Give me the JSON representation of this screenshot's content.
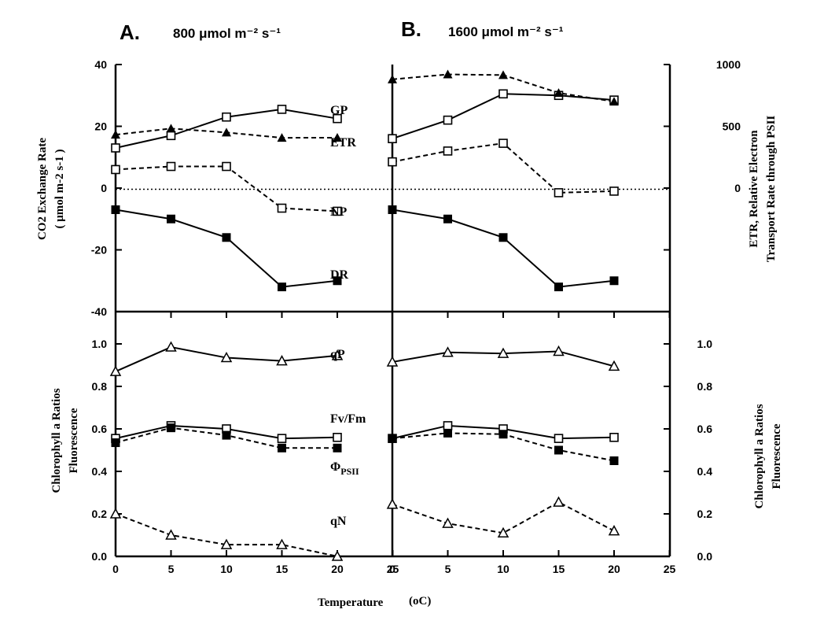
{
  "chart_data": [
    {
      "panel": "A",
      "title_letter": "A.",
      "title_light": "800 μmol m⁻² s⁻¹",
      "type": "line",
      "ylabel": "CO2 Exchange Rate (μmol m-2 s-1)",
      "ylim": [
        -40,
        40
      ],
      "yticks": [
        "40",
        "20",
        "0",
        "-20",
        "-40"
      ],
      "y2label": "ETR, Relative Electron Transport Rate through PSII",
      "y2lim": [
        -1000,
        1000
      ],
      "y2ticks": [
        "1000",
        "500",
        "0"
      ],
      "x": [
        0,
        5,
        10,
        15,
        20
      ],
      "series": [
        {
          "name": "GP",
          "axis": "left",
          "marker": "open-square",
          "line": "solid",
          "values": [
            13,
            17,
            23,
            25.5,
            22.5
          ]
        },
        {
          "name": "ETR",
          "axis": "right",
          "marker": "filled-triangle",
          "line": "dashed",
          "values": [
            432,
            482,
            450,
            407,
            408
          ]
        },
        {
          "name": "NP",
          "axis": "left",
          "marker": "open-square",
          "line": "dashed",
          "values": [
            6,
            7,
            7,
            -6.5,
            -7.5
          ]
        },
        {
          "name": "DR",
          "axis": "left",
          "marker": "filled-square",
          "line": "solid",
          "values": [
            -7,
            -10,
            -16,
            -32,
            -30
          ]
        }
      ]
    },
    {
      "panel": "B",
      "title_letter": "B.",
      "title_light": "1600 μmol m⁻² s⁻¹",
      "type": "line",
      "ylim": [
        -40,
        40
      ],
      "y2lim": [
        -1000,
        1000
      ],
      "x": [
        0,
        5,
        10,
        15,
        20
      ],
      "series": [
        {
          "name": "GP",
          "axis": "left",
          "marker": "open-square",
          "line": "solid",
          "values": [
            16,
            22,
            30.5,
            30,
            28.5
          ]
        },
        {
          "name": "ETR",
          "axis": "right",
          "marker": "filled-triangle",
          "line": "dashed",
          "values": [
            880,
            920,
            915,
            770,
            700
          ]
        },
        {
          "name": "NP",
          "axis": "left",
          "marker": "open-square",
          "line": "dashed",
          "values": [
            8.5,
            12,
            14.5,
            -1.5,
            -1
          ]
        },
        {
          "name": "DR",
          "axis": "left",
          "marker": "filled-square",
          "line": "solid",
          "values": [
            -7,
            -10,
            -16,
            -32,
            -30
          ]
        }
      ]
    },
    {
      "panel": "A-lower",
      "type": "line",
      "ylabel": "Chlorophyll a Fluorescence Ratios",
      "ylim": [
        0,
        1.1
      ],
      "yticks": [
        "1.0",
        "0.8",
        "0.6",
        "0.4",
        "0.2",
        "0.0"
      ],
      "x": [
        0,
        5,
        10,
        15,
        20
      ],
      "series": [
        {
          "name": "qP",
          "marker": "open-triangle",
          "line": "solid",
          "values": [
            0.87,
            0.985,
            0.935,
            0.92,
            0.945
          ]
        },
        {
          "name": "Fv/Fm",
          "marker": "open-square",
          "line": "solid",
          "values": [
            0.555,
            0.615,
            0.6,
            0.555,
            0.56
          ]
        },
        {
          "name": "ΦPSII",
          "marker": "filled-square",
          "line": "dashed",
          "values": [
            0.535,
            0.605,
            0.57,
            0.51,
            0.51
          ]
        },
        {
          "name": "qN",
          "marker": "open-triangle",
          "line": "dashed",
          "values": [
            0.2,
            0.1,
            0.055,
            0.055,
            0
          ]
        }
      ]
    },
    {
      "panel": "B-lower",
      "type": "line",
      "ylabel": "Chlorophyll a Fluorescence Ratios",
      "ylim": [
        0,
        1.1
      ],
      "yticks": [
        "1.0",
        "0.8",
        "0.6",
        "0.4",
        "0.2",
        "0.0"
      ],
      "x": [
        0,
        5,
        10,
        15,
        20
      ],
      "series": [
        {
          "name": "qP",
          "marker": "open-triangle",
          "line": "solid",
          "values": [
            0.915,
            0.96,
            0.955,
            0.965,
            0.895
          ]
        },
        {
          "name": "Fv/Fm",
          "marker": "open-square",
          "line": "solid",
          "values": [
            0.555,
            0.615,
            0.6,
            0.555,
            0.56
          ]
        },
        {
          "name": "ΦPSII",
          "marker": "filled-square",
          "line": "dashed",
          "values": [
            0.555,
            0.58,
            0.575,
            0.5,
            0.45
          ]
        },
        {
          "name": "qN",
          "marker": "open-triangle",
          "line": "dashed",
          "values": [
            0.245,
            0.155,
            0.11,
            0.255,
            0.12
          ]
        }
      ]
    }
  ],
  "xaxis": {
    "ticks": [
      "0",
      "5",
      "10",
      "15",
      "20",
      "25"
    ],
    "label": "Temperature",
    "unit": "(oC)",
    "xlim": [
      0,
      25
    ]
  },
  "series_labels": {
    "GP": "GP",
    "ETR": "ETR",
    "NP": "NP",
    "DR": "DR",
    "qP": "qP",
    "FvFm": "Fv/Fm",
    "PhiPSII_main": "Φ",
    "PhiPSII_sub": "PSII",
    "qN": "qN"
  },
  "axis_labels": {
    "left_top_line1": "CO2 Exchange Rate",
    "left_top_line2": "( μmol m-2 s-1 )",
    "right_top_line1": "ETR, Relative Electron",
    "right_top_line2": "Transport Rate through PSII",
    "fluor_line1": "Chlorophyll a Ratios",
    "fluor_line2": "Fluorescence"
  },
  "colors": {
    "ink": "#000000",
    "background": "#ffffff"
  }
}
